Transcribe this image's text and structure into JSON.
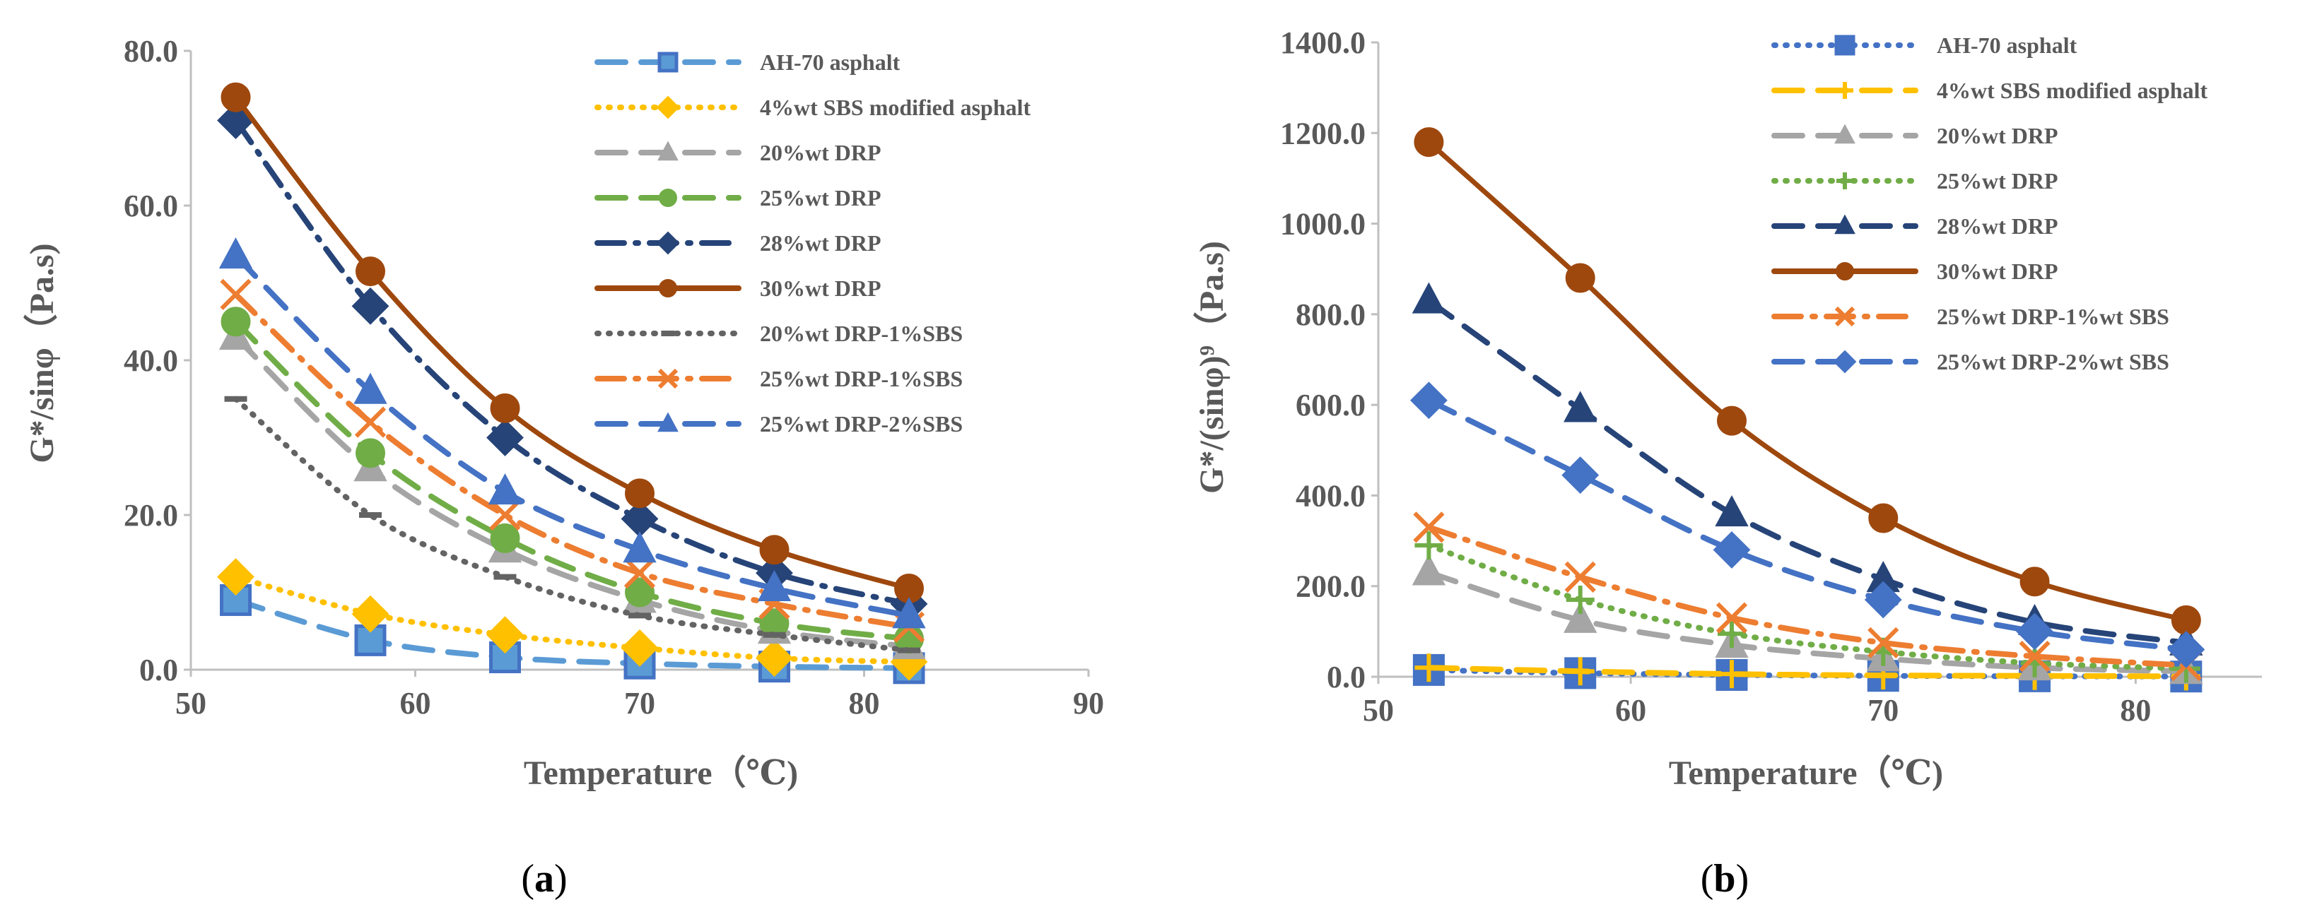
{
  "chart_data": [
    {
      "type": "line",
      "panel_label": "a",
      "ylabel": "G*/sinφ（Pa.s)",
      "xlabel": "Temperature（℃)",
      "xlim": [
        50,
        90
      ],
      "ylim": [
        0,
        80
      ],
      "xticks": [
        "50",
        "60",
        "70",
        "80",
        "90"
      ],
      "yticks": [
        "0.0",
        "20.0",
        "40.0",
        "60.0",
        "80.0"
      ],
      "x": [
        52,
        58,
        64,
        70,
        76,
        82
      ],
      "series": [
        {
          "name": "AH-70 asphalt",
          "values": [
            9.0,
            3.8,
            1.6,
            0.8,
            0.4,
            0.2
          ],
          "color": "#5b9bd5",
          "dash": "long-dash",
          "marker": "square",
          "marker_fill": "#5b9bd5"
        },
        {
          "name": "4%wt SBS modified asphalt",
          "values": [
            12.0,
            7.2,
            4.5,
            2.8,
            1.5,
            1.0
          ],
          "color": "#ffc000",
          "dash": "dot",
          "marker": "diamond",
          "marker_fill": "#ffc000"
        },
        {
          "name": "20%wt DRP",
          "values": [
            43.0,
            26.0,
            15.5,
            9.0,
            5.0,
            3.0
          ],
          "color": "#a5a5a5",
          "dash": "long-dash",
          "marker": "triangle",
          "marker_fill": "#a5a5a5"
        },
        {
          "name": "25%wt DRP",
          "values": [
            45.0,
            28.0,
            17.0,
            10.0,
            6.0,
            4.0
          ],
          "color": "#70ad47",
          "dash": "double-dash",
          "marker": "circle",
          "marker_fill": "#70ad47"
        },
        {
          "name": "28%wt DRP",
          "values": [
            71.0,
            47.0,
            30.0,
            19.5,
            12.5,
            8.5
          ],
          "color": "#264478",
          "dash": "dash-dot",
          "marker": "diamond",
          "marker_fill": "#264478"
        },
        {
          "name": "30%wt DRP",
          "values": [
            74.0,
            51.5,
            33.8,
            22.8,
            15.5,
            10.5
          ],
          "color": "#9e480e",
          "dash": "solid",
          "marker": "circle",
          "marker_fill": "#9e480e"
        },
        {
          "name": "20%wt DRP-1%SBS",
          "values": [
            35.0,
            20.0,
            12.0,
            7.0,
            4.5,
            2.5
          ],
          "color": "#636363",
          "dash": "dot",
          "marker": "dash",
          "marker_fill": "#636363"
        },
        {
          "name": "25%wt DRP-1%SBS",
          "values": [
            48.5,
            32.0,
            20.0,
            12.5,
            8.5,
            5.5
          ],
          "color": "#ed7d31",
          "dash": "dash-dot",
          "marker": "x",
          "marker_fill": "#ed7d31"
        },
        {
          "name": "25%wt DRP-2%SBS",
          "values": [
            53.5,
            36.0,
            23.0,
            15.5,
            10.5,
            7.0
          ],
          "color": "#4472c4",
          "dash": "double-dash",
          "marker": "triangle",
          "marker_fill": "#4472c4"
        }
      ]
    },
    {
      "type": "line",
      "panel_label": "b",
      "ylabel": "G*/(sinφ)⁹（Pa.s)",
      "xlabel": "Temperature（℃)",
      "xlim": [
        50,
        85
      ],
      "ylim": [
        0,
        1400
      ],
      "xticks": [
        "50",
        "60",
        "70",
        "80"
      ],
      "yticks": [
        "0.0",
        "200.0",
        "400.0",
        "600.0",
        "800.0",
        "1000.0",
        "1200.0",
        "1400.0"
      ],
      "x": [
        52,
        58,
        64,
        70,
        76,
        82
      ],
      "series": [
        {
          "name": "AH-70 asphalt",
          "values": [
            15,
            8,
            4,
            2,
            1,
            0.5
          ],
          "color": "#4472c4",
          "dash": "dot",
          "marker": "square",
          "marker_fill": "#4472c4"
        },
        {
          "name": "4%wt SBS modified asphalt",
          "values": [
            20,
            12,
            6,
            3,
            2,
            1
          ],
          "color": "#ffc000",
          "dash": "long-dash",
          "marker": "plus",
          "marker_fill": "#ffc000"
        },
        {
          "name": "20%wt DRP",
          "values": [
            230,
            125,
            70,
            40,
            20,
            12
          ],
          "color": "#a5a5a5",
          "dash": "long-dash",
          "marker": "triangle",
          "marker_fill": "#a5a5a5"
        },
        {
          "name": "25%wt DRP",
          "values": [
            290,
            170,
            95,
            55,
            30,
            18
          ],
          "color": "#70ad47",
          "dash": "dot",
          "marker": "plus",
          "marker_fill": "#70ad47"
        },
        {
          "name": "28%wt DRP",
          "values": [
            830,
            590,
            360,
            215,
            120,
            75
          ],
          "color": "#264478",
          "dash": "double-dash",
          "marker": "triangle",
          "marker_fill": "#264478"
        },
        {
          "name": "30%wt DRP",
          "values": [
            1180,
            880,
            565,
            350,
            210,
            125
          ],
          "color": "#9e480e",
          "dash": "solid",
          "marker": "circle",
          "marker_fill": "#9e480e"
        },
        {
          "name": "25%wt DRP-1%wt SBS",
          "values": [
            330,
            220,
            130,
            75,
            45,
            25
          ],
          "color": "#ed7d31",
          "dash": "dash-dot",
          "marker": "x",
          "marker_fill": "#ed7d31"
        },
        {
          "name": "25%wt DRP-2%wt SBS",
          "values": [
            610,
            445,
            280,
            170,
            100,
            60
          ],
          "color": "#4472c4",
          "dash": "double-dash",
          "marker": "diamond",
          "marker_fill": "#4472c4"
        }
      ]
    }
  ]
}
